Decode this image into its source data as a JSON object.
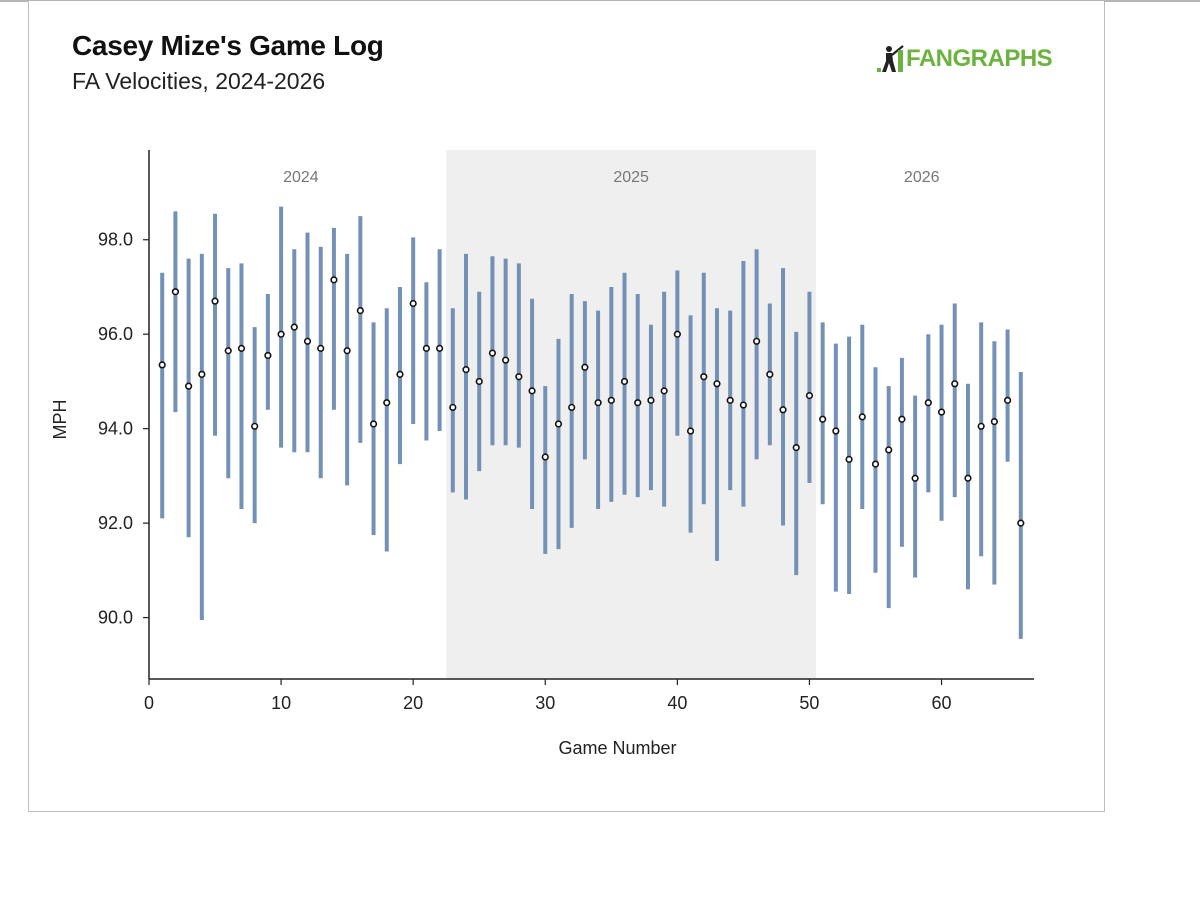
{
  "header": {
    "title": "Casey Mize's Game Log",
    "subtitle": "FA Velocities, 2024-2026",
    "logo_text": "FANGRAPHS",
    "logo_icon": "fangraphs-batter-icon",
    "logo_color": "#6bb33e"
  },
  "chart_data": {
    "type": "scatter",
    "title": "Casey Mize's Game Log",
    "subtitle": "FA Velocities, 2024-2026",
    "xlabel": "Game Number",
    "ylabel": "MPH",
    "xlim": [
      0,
      67
    ],
    "ylim": [
      88.7,
      99.9
    ],
    "xticks": [
      0,
      10,
      20,
      30,
      40,
      50,
      60
    ],
    "yticks": [
      90.0,
      92.0,
      94.0,
      96.0,
      98.0
    ],
    "x_tick_labels": [
      "0",
      "10",
      "20",
      "30",
      "40",
      "50",
      "60"
    ],
    "y_tick_labels": [
      "90.0",
      "92.0",
      "94.0",
      "96.0",
      "98.0"
    ],
    "grid": false,
    "legend": "none",
    "range_color": "#7391b6",
    "point_color": "#111111",
    "season_shade_color": "#efefef",
    "seasons": [
      {
        "label": "2024",
        "x_start": 0.5,
        "x_end": 22.5,
        "shaded": false
      },
      {
        "label": "2025",
        "x_start": 22.5,
        "x_end": 50.5,
        "shaded": true
      },
      {
        "label": "2026",
        "x_start": 50.5,
        "x_end": 66.5,
        "shaded": false
      }
    ],
    "series": [
      {
        "x": [
          1,
          2,
          3,
          4,
          5,
          6,
          7,
          8,
          9,
          10,
          11,
          12,
          13,
          14,
          15,
          16,
          17,
          18,
          19,
          20,
          21,
          22,
          23,
          24,
          25,
          26,
          27,
          28,
          29,
          30,
          31,
          32,
          33,
          34,
          35,
          36,
          37,
          38,
          39,
          40,
          41,
          42,
          43,
          44,
          45,
          46,
          47,
          48,
          49,
          50,
          51,
          52,
          53,
          54,
          55,
          56,
          57,
          58,
          59,
          60,
          61,
          62,
          63,
          64,
          65,
          66
        ],
        "avg": [
          95.35,
          96.9,
          94.9,
          95.15,
          96.7,
          95.65,
          95.7,
          94.05,
          95.55,
          96.0,
          96.15,
          95.85,
          95.7,
          97.15,
          95.65,
          96.5,
          94.1,
          94.55,
          95.15,
          96.65,
          95.7,
          95.7,
          94.45,
          95.25,
          95.0,
          95.6,
          95.45,
          95.1,
          94.8,
          93.4,
          94.1,
          94.45,
          95.3,
          94.55,
          94.6,
          95.0,
          94.55,
          94.6,
          94.8,
          96.0,
          93.95,
          95.1,
          94.95,
          94.6,
          94.5,
          95.85,
          95.15,
          94.4,
          93.6,
          94.7,
          94.2,
          93.95,
          93.35,
          94.25,
          93.25,
          93.55,
          94.2,
          92.95,
          94.55,
          94.35,
          94.95,
          92.95,
          94.05,
          94.15,
          94.6,
          92.0
        ],
        "max": [
          97.3,
          98.6,
          97.6,
          97.7,
          98.55,
          97.4,
          97.5,
          96.15,
          96.85,
          98.7,
          97.8,
          98.15,
          97.85,
          98.25,
          97.7,
          98.5,
          96.25,
          96.55,
          97.0,
          98.05,
          97.1,
          97.8,
          96.55,
          97.7,
          96.9,
          97.65,
          97.6,
          97.5,
          96.75,
          94.9,
          95.9,
          96.85,
          96.7,
          96.5,
          97.0,
          97.3,
          96.85,
          96.2,
          96.9,
          97.35,
          96.4,
          97.3,
          96.55,
          96.5,
          97.55,
          97.8,
          96.65,
          97.4,
          96.05,
          96.9,
          96.25,
          95.8,
          95.95,
          96.2,
          95.3,
          94.9,
          95.5,
          94.7,
          96.0,
          96.2,
          96.65,
          94.95,
          96.25,
          95.85,
          96.1,
          95.2
        ],
        "min": [
          92.1,
          94.35,
          91.7,
          89.95,
          93.85,
          92.95,
          92.3,
          92.0,
          94.4,
          93.6,
          93.5,
          93.5,
          92.95,
          94.4,
          92.8,
          93.7,
          91.75,
          91.4,
          93.25,
          94.1,
          93.75,
          93.95,
          92.65,
          92.5,
          93.1,
          93.65,
          93.65,
          93.6,
          92.3,
          91.35,
          91.45,
          91.9,
          93.35,
          92.3,
          92.45,
          92.6,
          92.55,
          92.7,
          92.35,
          93.85,
          91.8,
          92.4,
          91.2,
          92.7,
          92.35,
          93.35,
          93.65,
          91.95,
          90.9,
          92.85,
          92.4,
          90.55,
          90.5,
          92.3,
          90.95,
          90.2,
          91.5,
          90.85,
          92.65,
          92.05,
          92.55,
          90.6,
          91.3,
          90.7,
          93.3,
          89.55
        ]
      }
    ]
  }
}
